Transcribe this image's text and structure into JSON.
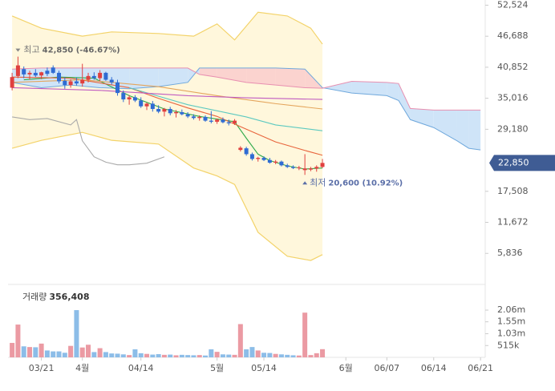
{
  "chart_data": [
    {
      "type": "candlestick",
      "xlim": [
        -0.7,
        80.8
      ],
      "xticks": [
        {
          "value": 5,
          "label": "03/21"
        },
        {
          "value": 12,
          "label": "4월"
        },
        {
          "value": 22,
          "label": "04/14"
        },
        {
          "value": 35,
          "label": "5월"
        },
        {
          "value": 43,
          "label": "05/14"
        },
        {
          "value": 57,
          "label": "6월"
        },
        {
          "value": 64,
          "label": "06/07"
        },
        {
          "value": 72,
          "label": "06/14"
        },
        {
          "value": 80,
          "label": "06/21"
        }
      ],
      "ylim": [
        1500,
        53500
      ],
      "yticks": [
        {
          "value": 5836,
          "label": "5,836"
        },
        {
          "value": 11672,
          "label": "11,672"
        },
        {
          "value": 17508,
          "label": "17,508"
        },
        {
          "value": 29180,
          "label": "29,180"
        },
        {
          "value": 35016,
          "label": "35,016"
        },
        {
          "value": 40852,
          "label": "40,852"
        },
        {
          "value": 46688,
          "label": "46,688"
        },
        {
          "value": 52524,
          "label": "52,524"
        }
      ],
      "up_color": "#e0403f",
      "down_color": "#2f6bd3",
      "open": [
        37000,
        39200,
        40500,
        39500,
        39800,
        39300,
        40200,
        40800,
        39800,
        38300,
        37500,
        38200,
        37800,
        38500,
        39200,
        38800,
        39800,
        38500,
        38000,
        36000,
        34800,
        35200,
        34600,
        33500,
        34000,
        33000,
        32500,
        33000,
        32200,
        32400,
        32000,
        31600,
        31300,
        31500,
        30800,
        30600,
        31000,
        30500,
        30300,
        25300,
        25600,
        24500,
        23600,
        23800,
        23400,
        22900,
        23100,
        22400,
        22100,
        21900,
        21500,
        21600,
        21800,
        22100
      ],
      "high": [
        39800,
        42850,
        41000,
        40200,
        40500,
        40000,
        40800,
        41200,
        40200,
        39000,
        38600,
        38900,
        41500,
        39800,
        39900,
        40300,
        40000,
        39000,
        38500,
        36500,
        35600,
        35600,
        35200,
        34200,
        34500,
        33700,
        33200,
        33400,
        32800,
        32900,
        32400,
        32000,
        31800,
        31800,
        32600,
        31200,
        31400,
        31000,
        31100,
        26000,
        25900,
        24800,
        24000,
        24100,
        23800,
        23400,
        23300,
        22700,
        22400,
        22300,
        24500,
        22100,
        22400,
        23600
      ],
      "low": [
        36500,
        38800,
        38800,
        38500,
        39000,
        38600,
        39200,
        39600,
        37800,
        36800,
        37000,
        37400,
        37200,
        38000,
        38500,
        38200,
        38300,
        37600,
        35500,
        34300,
        33800,
        34300,
        33200,
        32800,
        32500,
        32200,
        31600,
        31800,
        31400,
        31800,
        31300,
        31000,
        30800,
        30600,
        30300,
        30200,
        30300,
        29900,
        30000,
        25000,
        24200,
        23300,
        23100,
        23200,
        22700,
        22600,
        22200,
        21900,
        21700,
        21500,
        20600,
        21300,
        21200,
        21900
      ],
      "close": [
        39000,
        41200,
        39500,
        39800,
        39300,
        39900,
        39600,
        39800,
        38200,
        37500,
        38200,
        37800,
        38500,
        39200,
        38800,
        39800,
        38500,
        38000,
        36000,
        34800,
        35200,
        34600,
        33500,
        34000,
        33000,
        32500,
        33000,
        32200,
        32400,
        32000,
        31600,
        31300,
        31500,
        30800,
        30600,
        31000,
        30500,
        30300,
        30800,
        25700,
        24500,
        23600,
        23800,
        23400,
        22900,
        23100,
        22400,
        22100,
        21900,
        22000,
        21800,
        21800,
        22100,
        22850
      ],
      "band": {
        "x": [
          0,
          5,
          12,
          17,
          25,
          31,
          35,
          38,
          42,
          47,
          51,
          53
        ],
        "upper": [
          50500,
          48200,
          46700,
          47500,
          47200,
          46700,
          49000,
          46000,
          51200,
          50500,
          48200,
          45200
        ],
        "lower": [
          25600,
          27100,
          28600,
          27100,
          26400,
          21900,
          20400,
          18800,
          9800,
          5300,
          4500,
          5600
        ],
        "color": "#f3d36a",
        "fill": "#fff7dc"
      },
      "cloud": {
        "x": [
          0,
          5,
          10,
          15,
          20,
          25,
          30,
          32,
          35,
          40,
          45,
          50,
          53,
          58,
          64,
          66,
          68,
          72,
          76,
          78,
          80
        ],
        "span_a": [
          38000,
          37000,
          37500,
          37000,
          36800,
          37200,
          38000,
          40700,
          40700,
          40700,
          40700,
          40500,
          37000,
          36000,
          35500,
          34600,
          31000,
          29500,
          27000,
          25600,
          25300
        ],
        "span_b": [
          40500,
          40700,
          40700,
          40700,
          40700,
          40700,
          40700,
          39500,
          39000,
          38000,
          37500,
          37000,
          36900,
          38200,
          38000,
          37800,
          33100,
          32800,
          32800,
          32800,
          32800
        ],
        "a_color": "#6fa8dc",
        "b_color": "#e88fb0",
        "a_fill": "#fbd3cf",
        "b_fill": "#cfe4f8"
      },
      "lines": [
        {
          "color": "#2eaa4a",
          "x": [
            2,
            8,
            14,
            20,
            26,
            32,
            38,
            40,
            42,
            44,
            47,
            50,
            53
          ],
          "values": [
            38500,
            39000,
            38800,
            35500,
            33000,
            31600,
            30600,
            27500,
            24500,
            23300,
            22300,
            21700,
            21900
          ]
        },
        {
          "color": "#e8643c",
          "x": [
            0,
            10,
            20,
            25,
            30,
            35,
            40,
            45,
            50,
            53
          ],
          "values": [
            39000,
            38800,
            37000,
            35000,
            33200,
            31600,
            29200,
            26800,
            25200,
            24300
          ]
        },
        {
          "color": "#5cc9c0",
          "x": [
            20,
            30,
            40,
            45,
            53
          ],
          "values": [
            37000,
            33800,
            31500,
            30000,
            28900
          ]
        },
        {
          "color": "#e4a55c",
          "x": [
            0,
            12,
            25,
            35,
            45,
            53
          ],
          "values": [
            38000,
            38500,
            37200,
            35500,
            34000,
            33000
          ]
        },
        {
          "color": "#c05bc0",
          "x": [
            0,
            15,
            30,
            40,
            53
          ],
          "values": [
            37000,
            36500,
            35500,
            35100,
            34800
          ]
        },
        {
          "color": "#aaaaaa",
          "x": [
            0,
            3,
            6,
            10,
            11,
            12,
            14,
            16,
            18,
            20,
            23,
            26
          ],
          "values": [
            31500,
            31000,
            31200,
            30000,
            31000,
            27000,
            24000,
            23000,
            22500,
            22500,
            22800,
            24000
          ]
        }
      ],
      "high_marker": {
        "index": 1,
        "label": "최고",
        "value": 42850,
        "value_label": "42,850 (-46.67%)"
      },
      "low_marker": {
        "index": 50,
        "label": "최저",
        "value": 20600,
        "value_label": "20,600 (10.92%)"
      },
      "current": {
        "value": 22850,
        "value_label": "22,850",
        "color": "#3f5c94"
      }
    },
    {
      "type": "bar",
      "title": "거래량",
      "last": {
        "value": 356408,
        "label": "356,408"
      },
      "ylim": [
        0,
        3180000
      ],
      "yticks": [
        {
          "value": 515000,
          "label": "515k"
        },
        {
          "value": 1030000,
          "label": "1.03m"
        },
        {
          "value": 1550000,
          "label": "1.55m"
        },
        {
          "value": 2060000,
          "label": "2.06m"
        }
      ],
      "up_color": "#eb9aa3",
      "down_color": "#8cbde8",
      "values": [
        630000,
        1430000,
        480000,
        450000,
        440000,
        600000,
        300000,
        260000,
        260000,
        200000,
        500000,
        2060000,
        430000,
        550000,
        230000,
        400000,
        230000,
        170000,
        160000,
        130000,
        100000,
        350000,
        180000,
        150000,
        120000,
        140000,
        110000,
        120000,
        90000,
        110000,
        100000,
        90000,
        100000,
        80000,
        350000,
        240000,
        130000,
        120000,
        110000,
        1450000,
        350000,
        450000,
        300000,
        200000,
        190000,
        150000,
        130000,
        110000,
        90000,
        80000,
        1950000,
        100000,
        180000,
        356408
      ]
    }
  ]
}
